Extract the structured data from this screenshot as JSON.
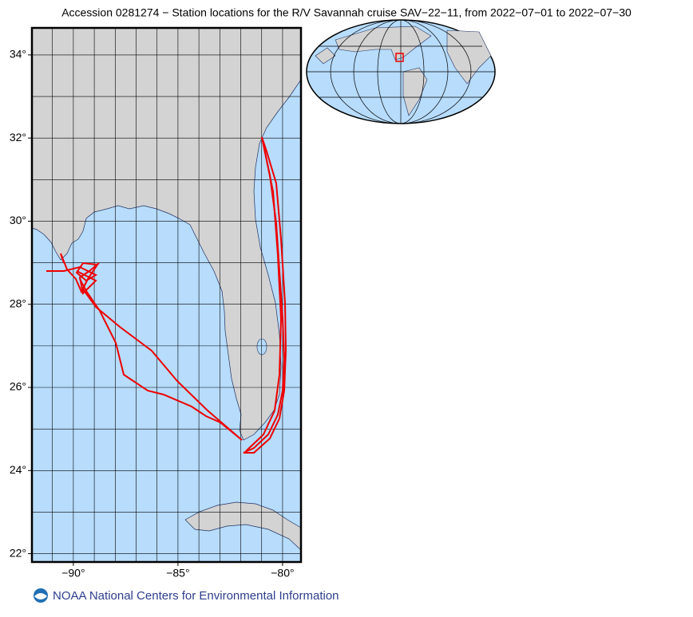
{
  "chart_data": {
    "type": "map",
    "title": "Accession 0281274 − Station locations for the R/V Savannah cruise SAV−22−11, from 2022−07−01 to 2022−07−30",
    "xlim": [
      -91.98,
      -79.12
    ],
    "ylim": [
      21.8,
      34.65
    ],
    "xticks": [
      {
        "value": -90,
        "label": "−90°"
      },
      {
        "value": -85,
        "label": "−85°"
      },
      {
        "value": -80,
        "label": "−80°"
      }
    ],
    "yticks": [
      {
        "value": 22,
        "label": "22°"
      },
      {
        "value": 24,
        "label": "24°"
      },
      {
        "value": 26,
        "label": "26°"
      },
      {
        "value": 28,
        "label": "28°"
      },
      {
        "value": 30,
        "label": "30°"
      },
      {
        "value": 32,
        "label": "32°"
      },
      {
        "value": 34,
        "label": "34°"
      }
    ],
    "xgrid": [
      -91,
      -90,
      -89,
      -88,
      -87,
      -86,
      -85,
      -84,
      -83,
      -82,
      -81,
      -80
    ],
    "ygrid": [
      22,
      23,
      24,
      25,
      26,
      27,
      28,
      29,
      30,
      31,
      32,
      33,
      34
    ],
    "grid": true,
    "track_color": "#ee0000"
  },
  "footer": {
    "text": "NOAA National Centers for Environmental Information"
  }
}
